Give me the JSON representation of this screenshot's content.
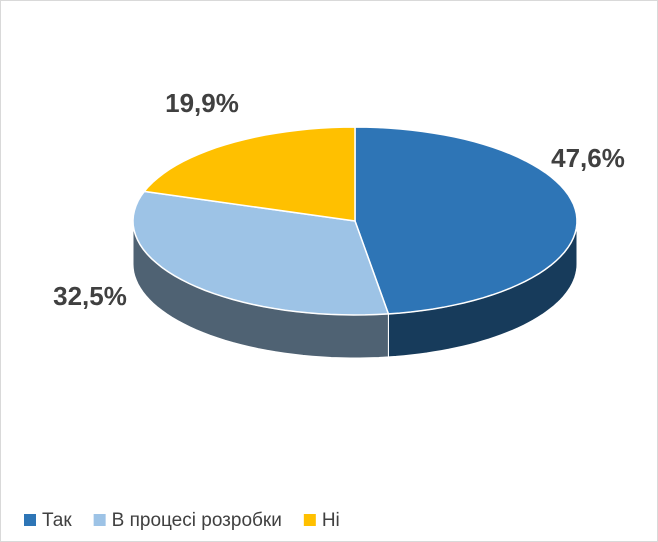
{
  "chart_data": {
    "type": "pie",
    "three_d": true,
    "categories": [
      "Так",
      "В процесі розробки",
      "Ні"
    ],
    "values": [
      47.6,
      32.5,
      19.9
    ],
    "value_labels": [
      "47,6%",
      "32,5%",
      "19,9%"
    ],
    "colors": [
      "#2e75b6",
      "#9dc3e6",
      "#ffc000"
    ],
    "legend": "bottom"
  }
}
